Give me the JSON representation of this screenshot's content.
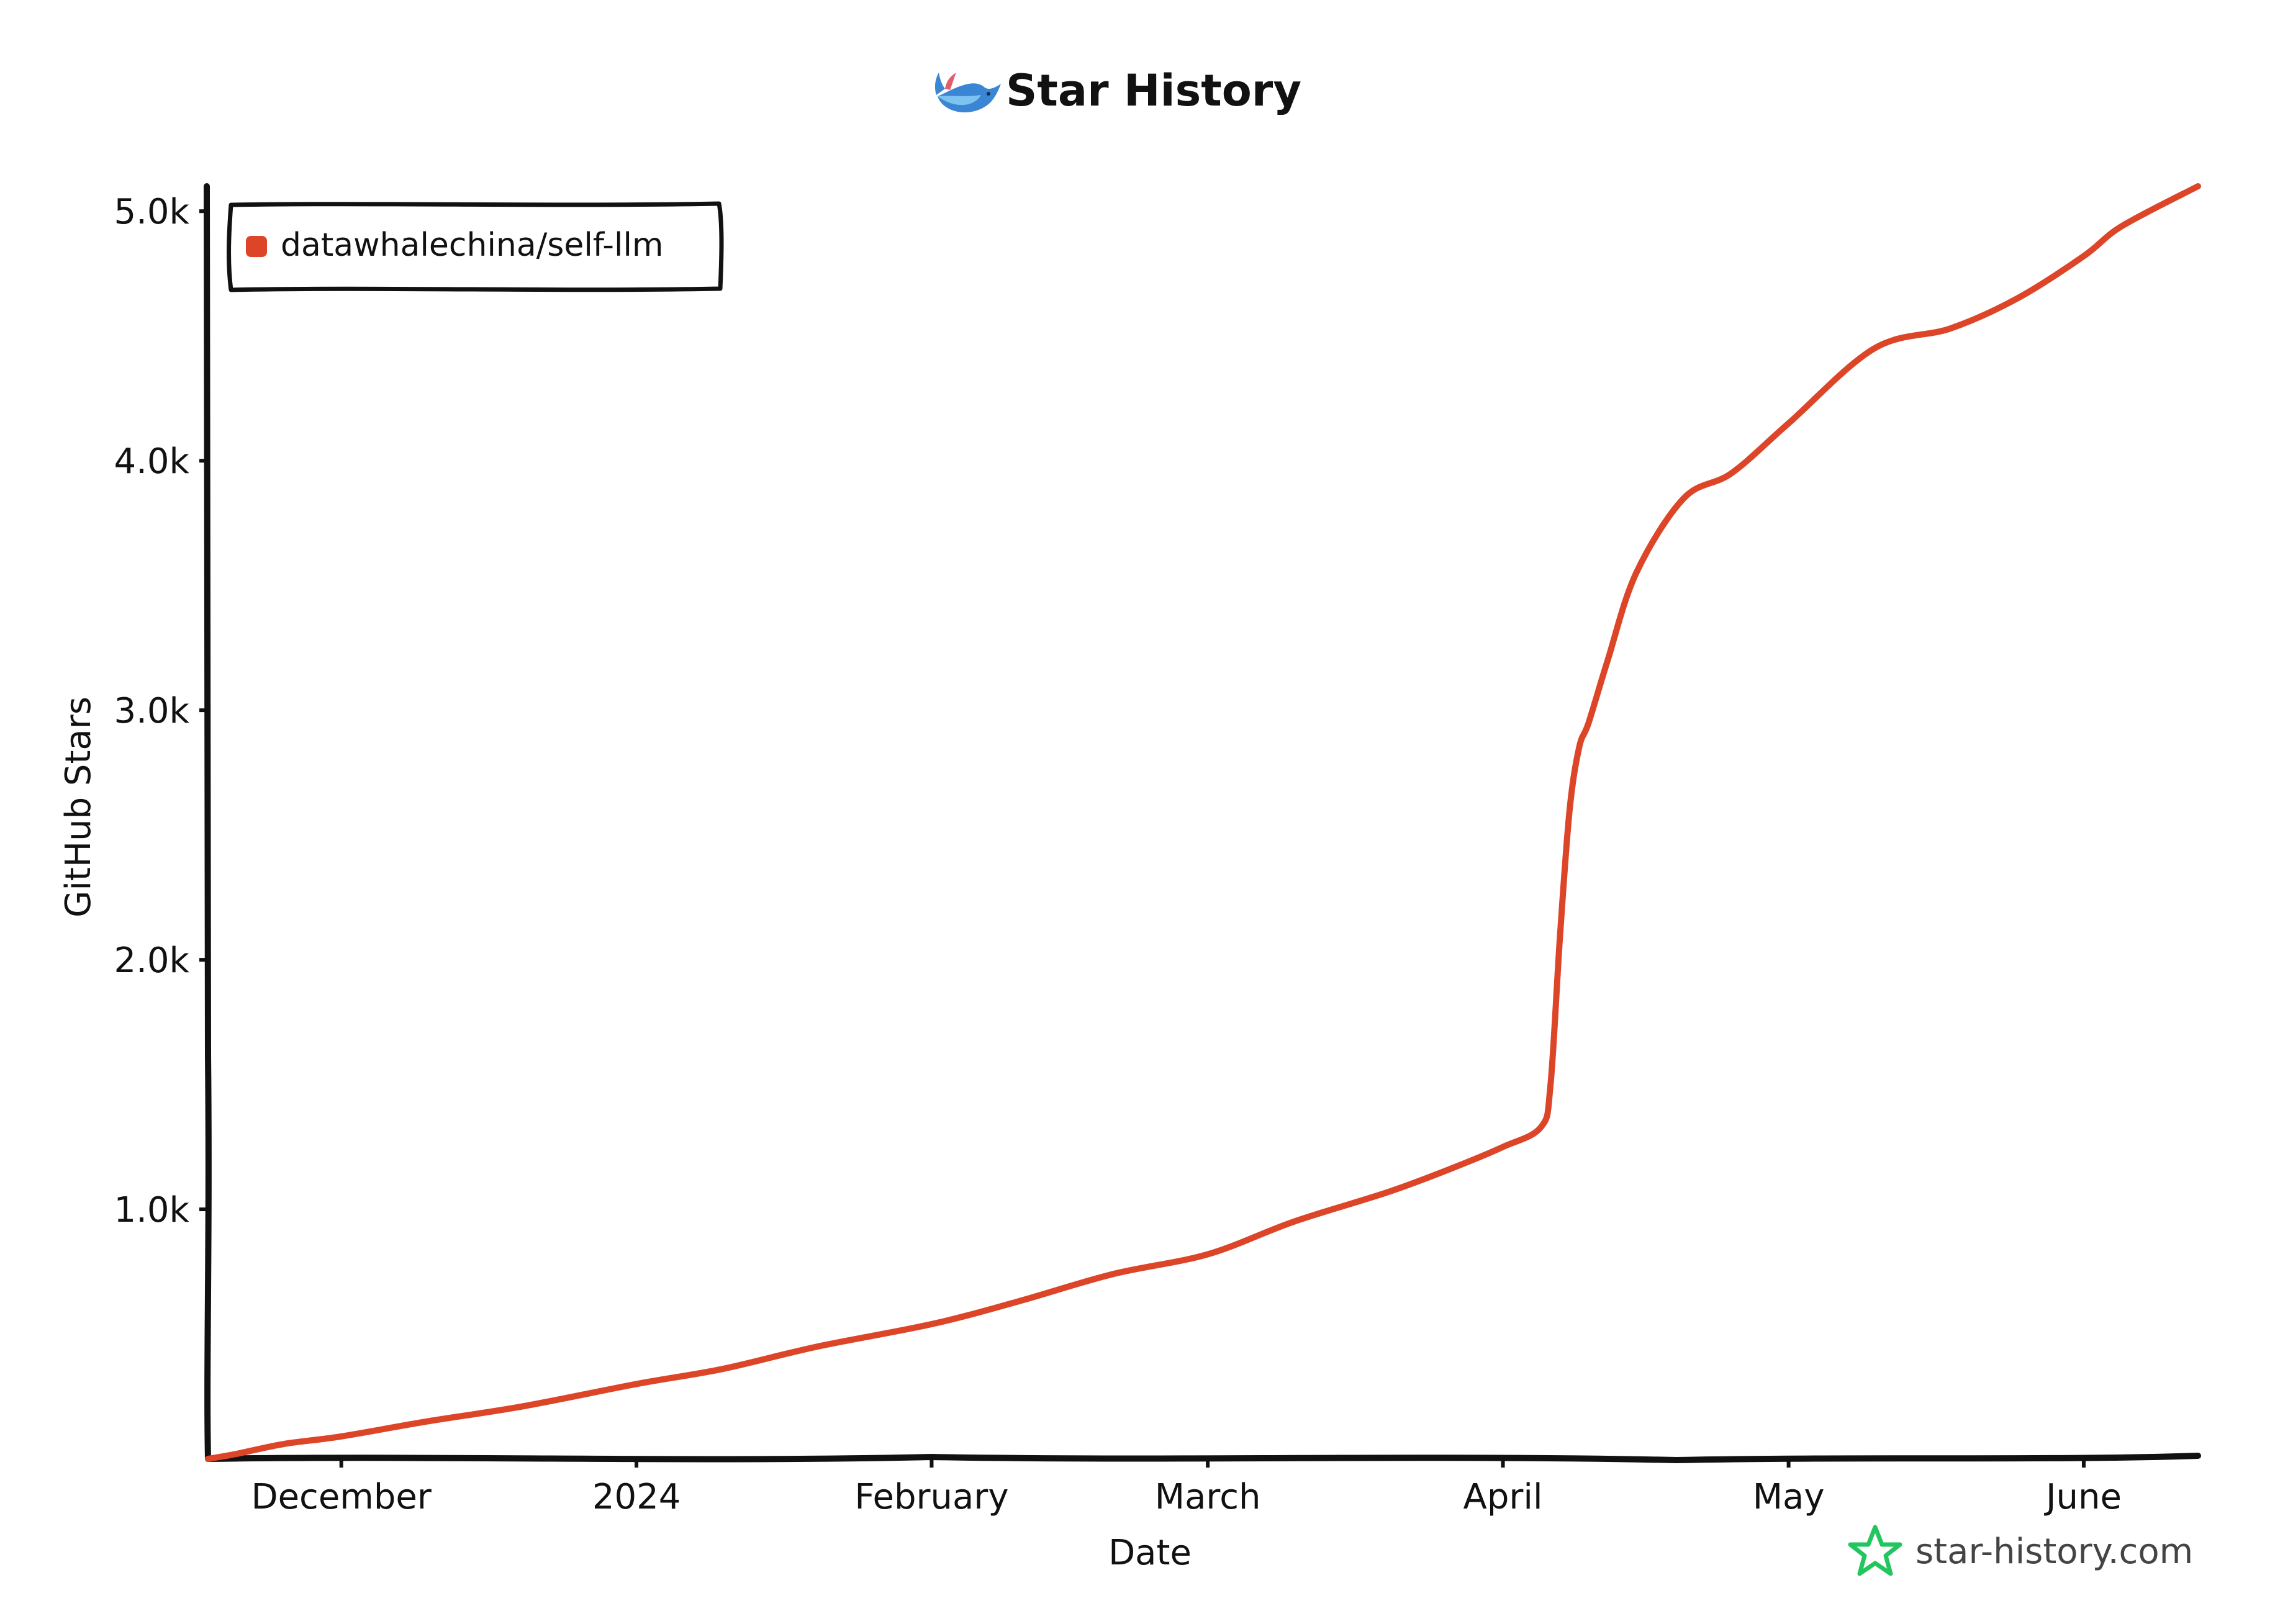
{
  "header": {
    "title": "Star History",
    "logo_icon": "whale-icon"
  },
  "watermark": {
    "text": "star-history.com",
    "icon": "star-icon",
    "color": "#22c55e"
  },
  "chart_data": {
    "type": "line",
    "title": "Star History",
    "xlabel": "Date",
    "ylabel": "GitHub Stars",
    "ylim": [
      0,
      5100
    ],
    "y_ticks": [
      1000,
      2000,
      3000,
      4000,
      5000
    ],
    "y_tick_labels": [
      "1.0k",
      "2.0k",
      "3.0k",
      "4.0k",
      "5.0k"
    ],
    "xlim": [
      "2023-11-17",
      "2024-06-13"
    ],
    "x_ticks": [
      "2023-12-01",
      "2024-01-01",
      "2024-02-01",
      "2024-03-01",
      "2024-04-01",
      "2024-05-01",
      "2024-06-01"
    ],
    "x_tick_labels": [
      "December",
      "2024",
      "February",
      "March",
      "April",
      "May",
      "June"
    ],
    "grid": false,
    "legend_position": "top-left",
    "series": [
      {
        "name": "datawhalechina/self-llm",
        "color": "#dd4528",
        "x": [
          "2023-11-17",
          "2023-11-20",
          "2023-11-25",
          "2023-12-01",
          "2023-12-10",
          "2023-12-20",
          "2024-01-01",
          "2024-01-10",
          "2024-01-20",
          "2024-02-01",
          "2024-02-10",
          "2024-02-20",
          "2024-03-01",
          "2024-03-10",
          "2024-03-20",
          "2024-03-27",
          "2024-04-01",
          "2024-04-05",
          "2024-04-06",
          "2024-04-07",
          "2024-04-08",
          "2024-04-09",
          "2024-04-10",
          "2024-04-12",
          "2024-04-15",
          "2024-04-20",
          "2024-04-25",
          "2024-05-01",
          "2024-05-10",
          "2024-05-18",
          "2024-05-25",
          "2024-06-01",
          "2024-06-05",
          "2024-06-13"
        ],
        "y": [
          0,
          20,
          60,
          90,
          150,
          210,
          300,
          360,
          450,
          540,
          630,
          740,
          820,
          950,
          1070,
          1170,
          1250,
          1330,
          1500,
          2100,
          2600,
          2850,
          2950,
          3200,
          3550,
          3850,
          3950,
          4150,
          4450,
          4530,
          4650,
          4820,
          4940,
          5100
        ]
      }
    ]
  }
}
